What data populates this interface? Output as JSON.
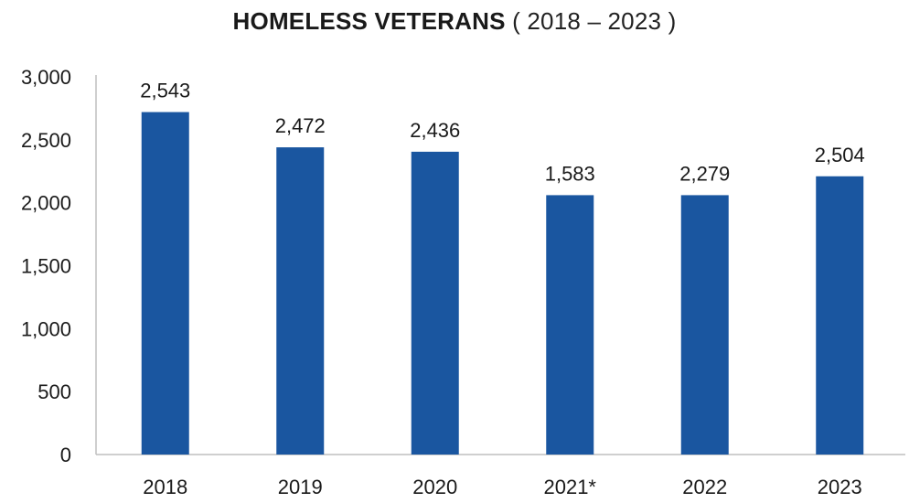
{
  "chart_data": {
    "type": "bar",
    "title": "HOMELESS VETERANS",
    "subtitle": "( 2018 – 2023 )",
    "xlabel": "",
    "ylabel": "",
    "categories": [
      "2018",
      "2019",
      "2020",
      "2021*",
      "2022",
      "2023"
    ],
    "values": [
      2543,
      2472,
      2436,
      1583,
      2279,
      2504
    ],
    "value_labels": [
      "2,543",
      "2,472",
      "2,436",
      "1,583",
      "2,279",
      "2,504"
    ],
    "bar_heights_shown": [
      2720,
      2440,
      2405,
      2060,
      2060,
      2210
    ],
    "ylim": [
      0,
      3000
    ],
    "yticks": [
      0,
      500,
      1000,
      1500,
      2000,
      2500,
      3000
    ],
    "ytick_labels": [
      "0",
      "500",
      "1,000",
      "1,500",
      "2,000",
      "2,500",
      "3,000"
    ],
    "grid": false,
    "legend": "none",
    "bar_color": "#1a56a0"
  }
}
